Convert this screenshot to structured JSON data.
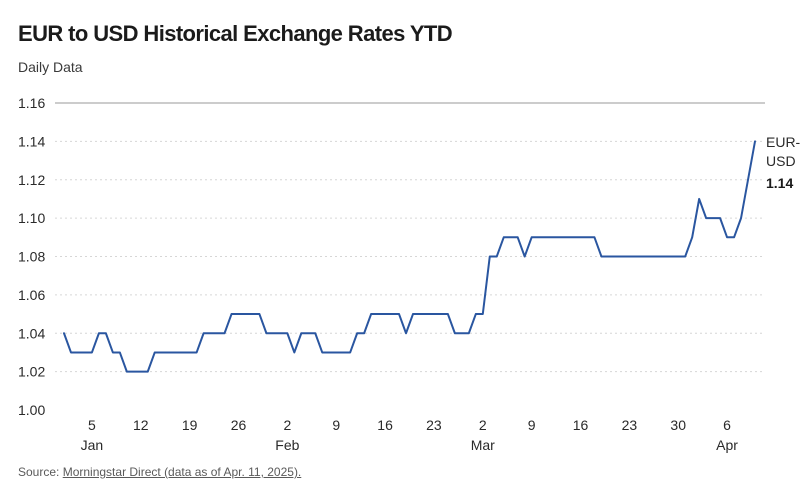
{
  "title": "EUR to USD Historical Exchange Rates YTD",
  "subtitle": "Daily Data",
  "source": {
    "prefix": "Source: ",
    "link_text": "Morningstar Direct (data as of Apr. 11, 2025)."
  },
  "colors": {
    "line": "#2a56a0",
    "grid": "#d6d6d6",
    "top_line": "#9a9a9a"
  },
  "chart_data": {
    "type": "line",
    "title": "EUR to USD Historical Exchange Rates YTD",
    "subtitle": "Daily Data",
    "xlabel": "",
    "ylabel": "",
    "ylim": [
      1.0,
      1.16
    ],
    "yticks": [
      "1.00",
      "1.02",
      "1.04",
      "1.06",
      "1.08",
      "1.10",
      "1.12",
      "1.14",
      "1.16"
    ],
    "grid": true,
    "x_tick_labels": [
      {
        "day": "5",
        "date": "2025-01-05"
      },
      {
        "day": "12",
        "date": "2025-01-12"
      },
      {
        "day": "19",
        "date": "2025-01-19"
      },
      {
        "day": "26",
        "date": "2025-01-26"
      },
      {
        "day": "2",
        "date": "2025-02-02"
      },
      {
        "day": "9",
        "date": "2025-02-09"
      },
      {
        "day": "16",
        "date": "2025-02-16"
      },
      {
        "day": "23",
        "date": "2025-02-23"
      },
      {
        "day": "2",
        "date": "2025-03-02"
      },
      {
        "day": "9",
        "date": "2025-03-09"
      },
      {
        "day": "16",
        "date": "2025-03-16"
      },
      {
        "day": "23",
        "date": "2025-03-23"
      },
      {
        "day": "30",
        "date": "2025-03-30"
      },
      {
        "day": "6",
        "date": "2025-04-06"
      }
    ],
    "month_labels": [
      {
        "label": "Jan",
        "date": "2025-01-05"
      },
      {
        "label": "Feb",
        "date": "2025-02-02"
      },
      {
        "label": "Mar",
        "date": "2025-03-02"
      },
      {
        "label": "Apr",
        "date": "2025-04-06"
      }
    ],
    "end_label": {
      "line1": "EUR-",
      "line2": "USD",
      "value": "1.14"
    },
    "series": [
      {
        "name": "EUR-USD",
        "points": [
          [
            "2025-01-01",
            1.04
          ],
          [
            "2025-01-02",
            1.03
          ],
          [
            "2025-01-03",
            1.03
          ],
          [
            "2025-01-05",
            1.03
          ],
          [
            "2025-01-06",
            1.04
          ],
          [
            "2025-01-07",
            1.04
          ],
          [
            "2025-01-08",
            1.03
          ],
          [
            "2025-01-09",
            1.03
          ],
          [
            "2025-01-10",
            1.02
          ],
          [
            "2025-01-13",
            1.02
          ],
          [
            "2025-01-14",
            1.03
          ],
          [
            "2025-01-17",
            1.03
          ],
          [
            "2025-01-20",
            1.03
          ],
          [
            "2025-01-21",
            1.04
          ],
          [
            "2025-01-24",
            1.04
          ],
          [
            "2025-01-25",
            1.05
          ],
          [
            "2025-01-29",
            1.05
          ],
          [
            "2025-01-30",
            1.04
          ],
          [
            "2025-01-31",
            1.04
          ],
          [
            "2025-02-02",
            1.04
          ],
          [
            "2025-02-03",
            1.03
          ],
          [
            "2025-02-04",
            1.04
          ],
          [
            "2025-02-06",
            1.04
          ],
          [
            "2025-02-07",
            1.03
          ],
          [
            "2025-02-11",
            1.03
          ],
          [
            "2025-02-12",
            1.04
          ],
          [
            "2025-02-13",
            1.04
          ],
          [
            "2025-02-14",
            1.05
          ],
          [
            "2025-02-18",
            1.05
          ],
          [
            "2025-02-19",
            1.04
          ],
          [
            "2025-02-20",
            1.05
          ],
          [
            "2025-02-25",
            1.05
          ],
          [
            "2025-02-26",
            1.04
          ],
          [
            "2025-02-27",
            1.04
          ],
          [
            "2025-02-28",
            1.04
          ],
          [
            "2025-03-01",
            1.05
          ],
          [
            "2025-03-02",
            1.05
          ],
          [
            "2025-03-03",
            1.08
          ],
          [
            "2025-03-04",
            1.08
          ],
          [
            "2025-03-05",
            1.09
          ],
          [
            "2025-03-07",
            1.09
          ],
          [
            "2025-03-08",
            1.08
          ],
          [
            "2025-03-09",
            1.09
          ],
          [
            "2025-03-18",
            1.09
          ],
          [
            "2025-03-19",
            1.08
          ],
          [
            "2025-03-31",
            1.08
          ],
          [
            "2025-04-01",
            1.09
          ],
          [
            "2025-04-02",
            1.11
          ],
          [
            "2025-04-03",
            1.1
          ],
          [
            "2025-04-05",
            1.1
          ],
          [
            "2025-04-06",
            1.09
          ],
          [
            "2025-04-07",
            1.09
          ],
          [
            "2025-04-08",
            1.1
          ],
          [
            "2025-04-10",
            1.14
          ]
        ]
      }
    ]
  }
}
